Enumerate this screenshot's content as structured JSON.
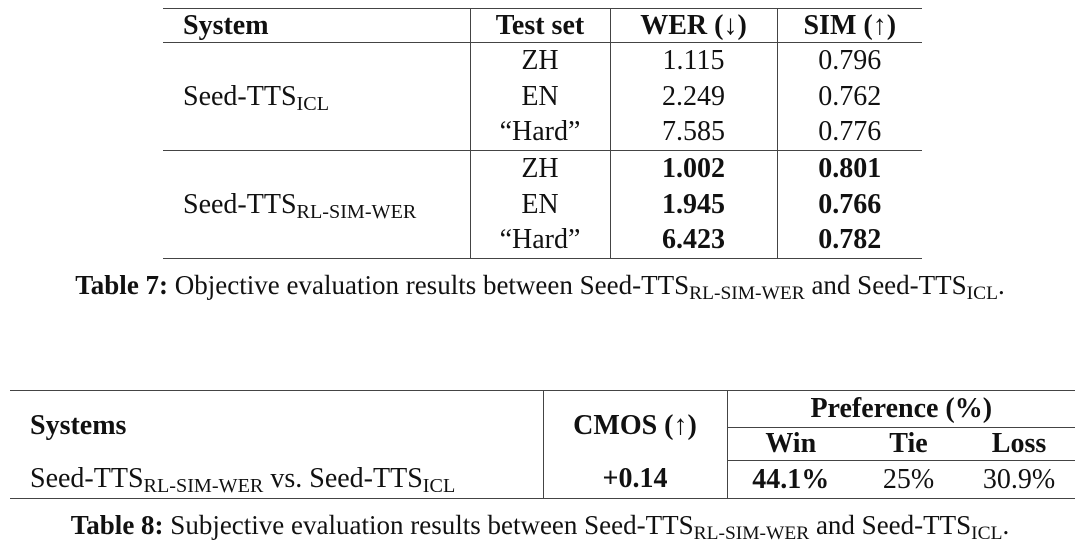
{
  "table7": {
    "header": [
      "System",
      "Test set",
      "WER (↓)",
      "SIM (↑)"
    ],
    "groups": [
      {
        "system": [
          {
            "text": "Seed-TTS"
          },
          {
            "sub": "ICL"
          }
        ],
        "bold": false,
        "rows": [
          [
            "ZH",
            "1.115",
            "0.796"
          ],
          [
            "EN",
            "2.249",
            "0.762"
          ],
          [
            "“Hard”",
            "7.585",
            "0.776"
          ]
        ]
      },
      {
        "system": [
          {
            "text": "Seed-TTS"
          },
          {
            "sub": "RL-SIM-WER"
          }
        ],
        "bold": true,
        "rows": [
          [
            "ZH",
            "1.002",
            "0.801"
          ],
          [
            "EN",
            "1.945",
            "0.766"
          ],
          [
            "“Hard”",
            "6.423",
            "0.782"
          ]
        ]
      }
    ],
    "caption": {
      "label": "Table 7:",
      "parts": [
        {
          "text": " Objective evaluation results between Seed-TTS"
        },
        {
          "sub": "RL-SIM-WER"
        },
        {
          "text": " and Seed-TTS"
        },
        {
          "sub": "ICL"
        },
        {
          "text": "."
        }
      ]
    }
  },
  "table8": {
    "header": {
      "systems": "Systems",
      "cmos": "CMOS (↑)",
      "preference": "Preference (%)",
      "win": "Win",
      "tie": "Tie",
      "loss": "Loss"
    },
    "row": {
      "system": [
        {
          "text": "Seed-TTS"
        },
        {
          "sub": "RL-SIM-WER"
        },
        {
          "text": " vs. Seed-TTS"
        },
        {
          "sub": "ICL"
        }
      ],
      "cmos": "+0.14",
      "win": "44.1%",
      "tie": "25%",
      "loss": "30.9%"
    },
    "caption": {
      "label": "Table 8:",
      "parts": [
        {
          "text": " Subjective evaluation results between Seed-TTS"
        },
        {
          "sub": "RL-SIM-WER"
        },
        {
          "text": " and Seed-TTS"
        },
        {
          "sub": "ICL"
        },
        {
          "text": "."
        }
      ]
    }
  }
}
